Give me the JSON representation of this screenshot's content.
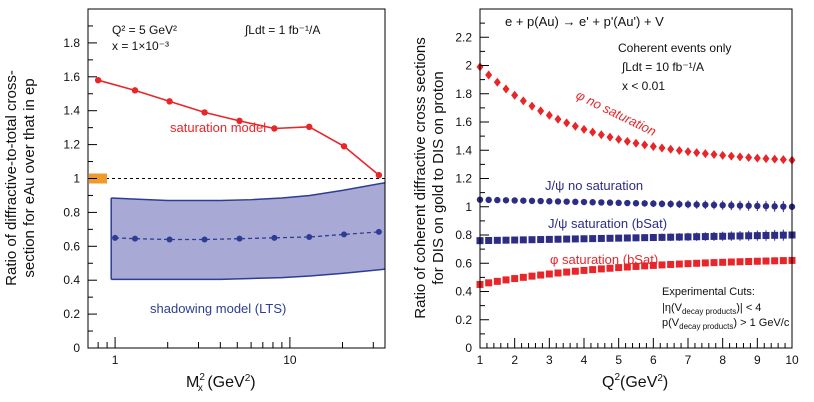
{
  "chart_data": [
    {
      "type": "line",
      "x_scale": "log",
      "xlim": [
        0.7,
        35
      ],
      "ylim": [
        0,
        2
      ],
      "xlabel": "M²_X (GeV²)",
      "xlabel_main": "M",
      "xlabel_sub": "x",
      "xlabel_sup": "2",
      "xlabel_unit": "(GeV",
      "xlabel_unit_sup": "2",
      "xlabel_close": ")",
      "ylabel_lines": [
        "Ratio of diffractive-to-total cross-",
        "section for eAu over that in ep"
      ],
      "y_ticks": [
        "0",
        "0.2",
        "0.4",
        "0.6",
        "0.8",
        "1",
        "1.2",
        "1.4",
        "1.6",
        "1.8"
      ],
      "x_tick_labels": [
        "1",
        "10"
      ],
      "annotations": {
        "q2": "Q² = 5 GeV²",
        "x": "x = 1×10⁻³",
        "lumi": "∫Ldt = 1 fb⁻¹/A"
      },
      "series": [
        {
          "name": "saturation model",
          "color": "#e8262a",
          "x": [
            0.8,
            1.3,
            2.05,
            3.25,
            5.15,
            8.15,
            12.9,
            20.4,
            32.3
          ],
          "y": [
            1.58,
            1.52,
            1.455,
            1.39,
            1.34,
            1.295,
            1.305,
            1.19,
            1.02
          ]
        },
        {
          "name": "shadowing model (LTS)",
          "color": "#2d3d93",
          "band_color": "#a9a9d6",
          "x": [
            1.0,
            1.3,
            2.05,
            3.25,
            5.15,
            8.15,
            12.9,
            20.4,
            32.3
          ],
          "y": [
            0.65,
            0.645,
            0.64,
            0.64,
            0.645,
            0.65,
            0.655,
            0.67,
            0.685
          ],
          "band_x": [
            0.95,
            2.0,
            4.0,
            6.0,
            9.0,
            13.0,
            20.0,
            35.0
          ],
          "band_upper": [
            0.885,
            0.87,
            0.87,
            0.875,
            0.885,
            0.9,
            0.93,
            0.975
          ],
          "band_lower": [
            0.405,
            0.405,
            0.405,
            0.41,
            0.415,
            0.425,
            0.44,
            0.465
          ]
        }
      ],
      "reference_line": 1.0,
      "reference_marker_color": "#f09a2a"
    },
    {
      "type": "scatter",
      "xlim": [
        1,
        10
      ],
      "ylim": [
        0,
        2.4
      ],
      "xlabel_main": "Q",
      "xlabel_sup": "2",
      "xlabel_unit": "(GeV",
      "xlabel_unit_sup": "2",
      "xlabel_close": ")",
      "ylabel_lines": [
        "Ratio of coherent diffractive cross sections",
        "for DIS on gold to DIS on proton"
      ],
      "y_ticks": [
        "0",
        "0.2",
        "0.4",
        "0.6",
        "0.8",
        "1",
        "1.2",
        "1.4",
        "1.6",
        "1.8",
        "2",
        "2.2"
      ],
      "x_tick_labels": [
        "1",
        "2",
        "3",
        "4",
        "5",
        "6",
        "7",
        "8",
        "9",
        "10"
      ],
      "annotations": {
        "reaction": "e + p(Au) → e' + p'(Au') + V",
        "coherent": "Coherent events only",
        "lumi": "∫Ldt = 10 fb⁻¹/A",
        "xcut": "x < 0.01",
        "cuts_title": "Experimental Cuts:",
        "cut1": "|η(V",
        "cut1_sub": "decay products",
        "cut1_end": ")| < 4",
        "cut2": "p(V",
        "cut2_sub": "decay products",
        "cut2_end": ") > 1 GeV/c"
      },
      "series": [
        {
          "name": "φ no saturation",
          "color": "#e8262a",
          "marker": "diamond",
          "y_start": 1.99,
          "y_end": 1.33,
          "shape": "decay"
        },
        {
          "name": "J/ψ no saturation",
          "color": "#2d2d86",
          "marker": "circle",
          "y_start": 1.05,
          "y_end": 1.0,
          "shape": "linear"
        },
        {
          "name": "J/ψ saturation (bSat)",
          "color": "#2d2d86",
          "marker": "square",
          "y_start": 0.76,
          "y_end": 0.8,
          "shape": "linear"
        },
        {
          "name": "φ saturation (bSat)",
          "color": "#e8262a",
          "marker": "square",
          "y_start": 0.45,
          "y_end": 0.62,
          "shape": "rise"
        }
      ],
      "labels": {
        "phi_nosat": "φ no saturation",
        "jpsi_nosat": "J/ψ no saturation",
        "jpsi_sat": "J/ψ saturation (bSat)",
        "phi_sat": "φ saturation (bSat)"
      }
    }
  ]
}
